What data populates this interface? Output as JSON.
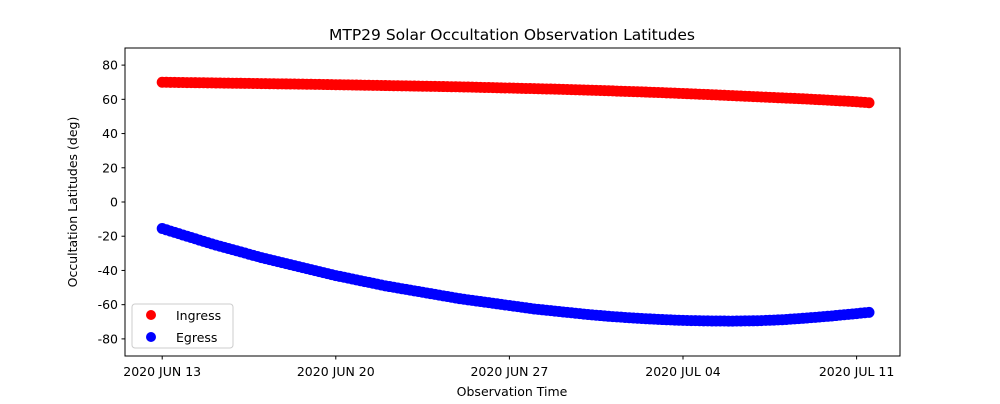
{
  "chart_data": {
    "type": "scatter",
    "title": "MTP29 Solar Occultation Observation Latitudes",
    "xlabel": "Observation Time",
    "ylabel": "Occultation Latitudes (deg)",
    "x_unit": "days since 2020 JUN 13",
    "xlim": [
      -1.5,
      29.75
    ],
    "ylim": [
      -90,
      90
    ],
    "yticks": [
      80,
      60,
      40,
      20,
      0,
      -20,
      -40,
      -60,
      -80
    ],
    "xticks": [
      {
        "value": 0,
        "label": "2020 JUN 13"
      },
      {
        "value": 7,
        "label": "2020 JUN 20"
      },
      {
        "value": 14,
        "label": "2020 JUN 27"
      },
      {
        "value": 21,
        "label": "2020 JUL 04"
      },
      {
        "value": 28,
        "label": "2020 JUL 11"
      }
    ],
    "legend": {
      "placement": "lower-left"
    },
    "series": [
      {
        "name": "Ingress",
        "color": "#ff0000",
        "x": [
          0,
          2,
          4,
          6,
          8,
          10,
          12,
          14,
          16,
          18,
          20,
          22,
          24,
          26,
          28,
          28.5
        ],
        "y": [
          70,
          69.6,
          69.2,
          68.8,
          68.3,
          67.8,
          67.3,
          66.6,
          65.9,
          65,
          64,
          62.8,
          61.5,
          60.2,
          58.6,
          58
        ]
      },
      {
        "name": "Egress",
        "color": "#0000ff",
        "x": [
          0,
          1,
          2,
          3,
          4,
          5,
          6,
          7,
          8,
          9,
          10,
          11,
          12,
          13,
          14,
          15,
          16,
          17,
          18,
          19,
          20,
          21,
          22,
          23,
          24,
          25,
          26,
          27,
          28,
          28.5
        ],
        "y": [
          -15.5,
          -20,
          -24.5,
          -28.5,
          -32.5,
          -36,
          -39.5,
          -43,
          -46,
          -49,
          -51.5,
          -54,
          -56.5,
          -58.5,
          -60.5,
          -62.5,
          -64,
          -65.5,
          -66.8,
          -67.8,
          -68.6,
          -69.2,
          -69.5,
          -69.6,
          -69.4,
          -68.8,
          -67.8,
          -66.6,
          -65.2,
          -64.5
        ]
      }
    ]
  }
}
